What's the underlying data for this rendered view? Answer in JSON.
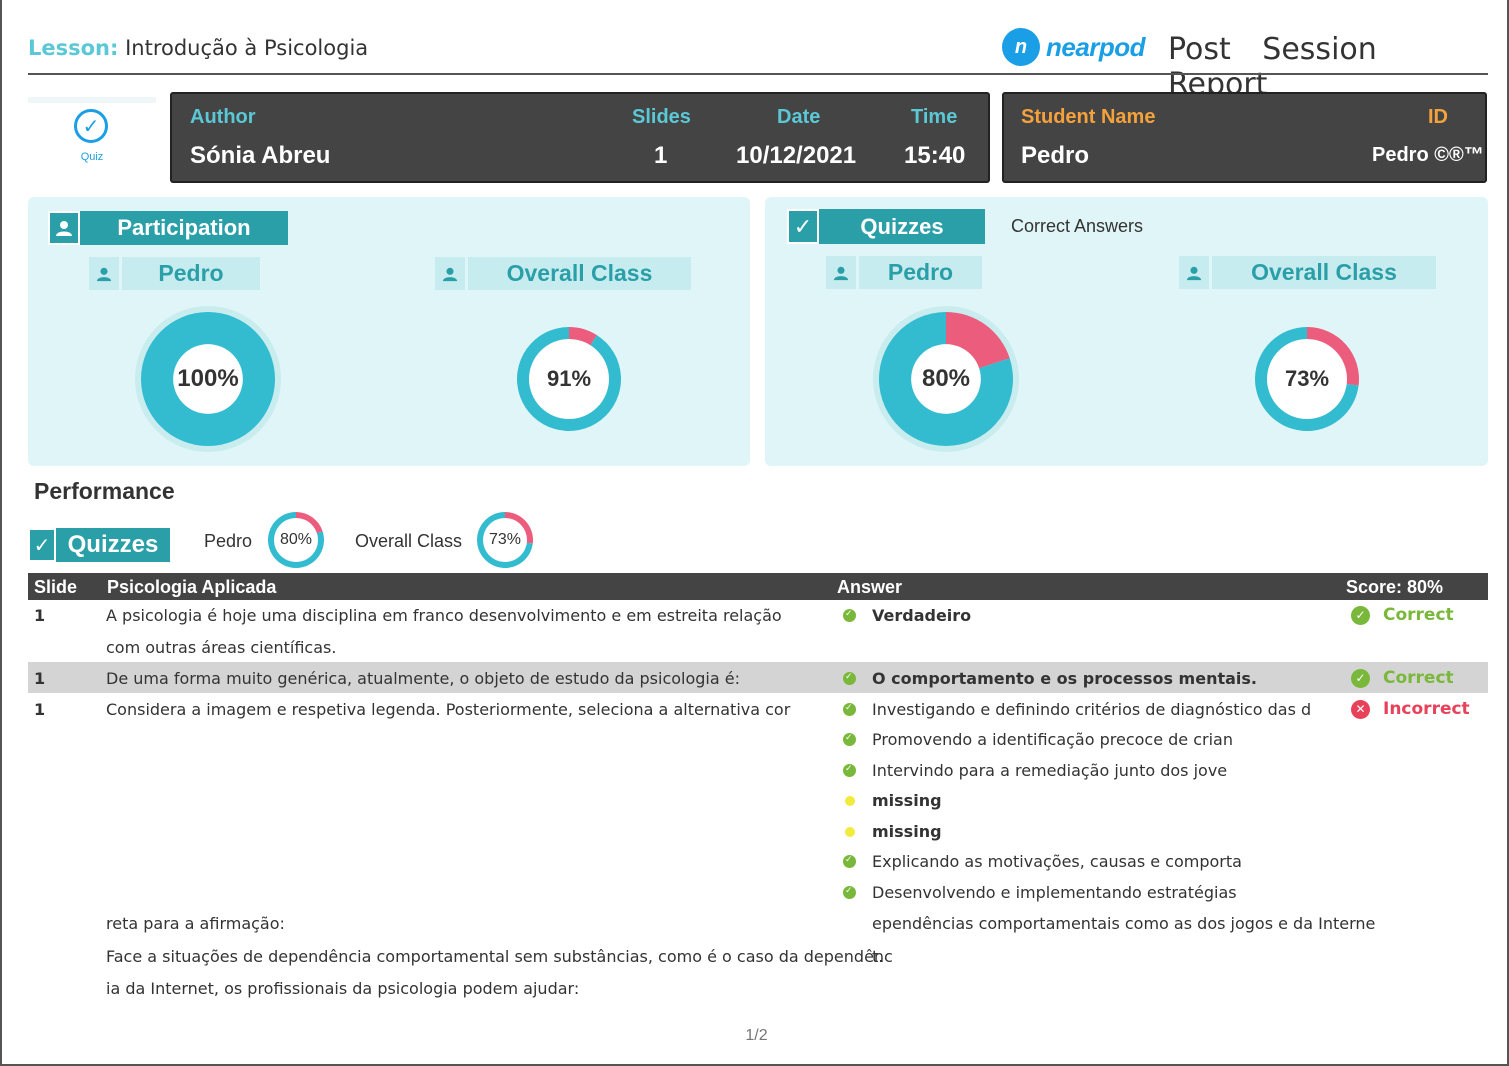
{
  "header": {
    "lesson_label": "Lesson:",
    "lesson_title": "Introdução à Psicologia",
    "brand": "nearpod",
    "report_title": "Post Session Report"
  },
  "thumbnail": {
    "label": "Quiz",
    "icon": "check-circle-icon"
  },
  "session": {
    "author_label": "Author",
    "author": "Sónia  Abreu",
    "slides_label": "Slides",
    "slides": "1",
    "date_label": "Date",
    "date": "10/12/2021",
    "time_label": "Time",
    "time": "15:40"
  },
  "student": {
    "name_label": "Student Name",
    "name": "Pedro",
    "id_label": "ID",
    "id": "Pedro ©®™"
  },
  "participation": {
    "title": "Participation",
    "student_label": "Pedro",
    "class_label": "Overall Class",
    "student_percent": 100,
    "student_text": "100%",
    "class_percent": 91,
    "class_text": "91%"
  },
  "quizzes": {
    "title": "Quizzes",
    "subtitle": "Correct Answers",
    "student_label": "Pedro",
    "class_label": "Overall Class",
    "student_percent": 80,
    "student_text": "80%",
    "class_percent": 73,
    "class_text": "73%"
  },
  "performance": {
    "title": "Performance",
    "tag": "Quizzes",
    "student_label": "Pedro",
    "student_text": "80%",
    "class_label": "Overall Class",
    "class_text": "73%"
  },
  "table": {
    "col_slide": "Slide",
    "col_question": "Psicologia Aplicada",
    "col_answer": "Answer",
    "col_score": "Score: 80%",
    "rows": [
      {
        "slide": "1",
        "question_lines": [
          "A psicologia é hoje uma disciplina em franco desenvolvimento e em estreita relação",
          "com outras áreas científicas."
        ],
        "answers": [
          {
            "text": "Verdadeiro",
            "mark": "green",
            "bold": true
          }
        ],
        "status": "Correct"
      },
      {
        "slide": "1",
        "question_lines": [
          "De uma forma muito genérica, atualmente, o objeto de estudo da psicologia é:"
        ],
        "answers": [
          {
            "text": "O comportamento e os processos mentais.",
            "mark": "green",
            "bold": true
          }
        ],
        "status": "Correct"
      },
      {
        "slide": "1",
        "question_lines": [
          "Considera a imagem e respetiva legenda. Posteriormente, seleciona a alternativa cor",
          "reta para a afirmação:",
          "Face a situações de dependência comportamental sem substâncias, como é o caso da dependênc",
          "ia da Internet, os profissionais da psicologia podem ajudar:"
        ],
        "answers": [
          {
            "text": "Investigando e definindo critérios de diagnóstico das d",
            "mark": "green",
            "bold": false
          },
          {
            "text": "Promovendo a identificação precoce de crian",
            "mark": "green",
            "bold": false
          },
          {
            "text": "Intervindo para a remediação junto dos jove",
            "mark": "green",
            "bold": false
          },
          {
            "text": "missing",
            "mark": "yellow",
            "bold": true
          },
          {
            "text": "missing",
            "mark": "yellow",
            "bold": true
          },
          {
            "text": "Explicando as motivações, causas e comporta",
            "mark": "green",
            "bold": false
          },
          {
            "text": "Desenvolvendo e implementando estratégias",
            "mark": "green",
            "bold": false
          }
        ],
        "answer_continuation": [
          "ependências comportamentais como as dos jogos e da Interne",
          "t."
        ],
        "status": "Incorrect"
      }
    ]
  },
  "page_number": "1/2",
  "colors": {
    "teal": "#2a9fa8",
    "donut_blue": "#33bcd0",
    "donut_pink": "#ec5c7c",
    "correct": "#79b83a",
    "incorrect": "#e8425a",
    "missing": "#f2ea3c"
  }
}
